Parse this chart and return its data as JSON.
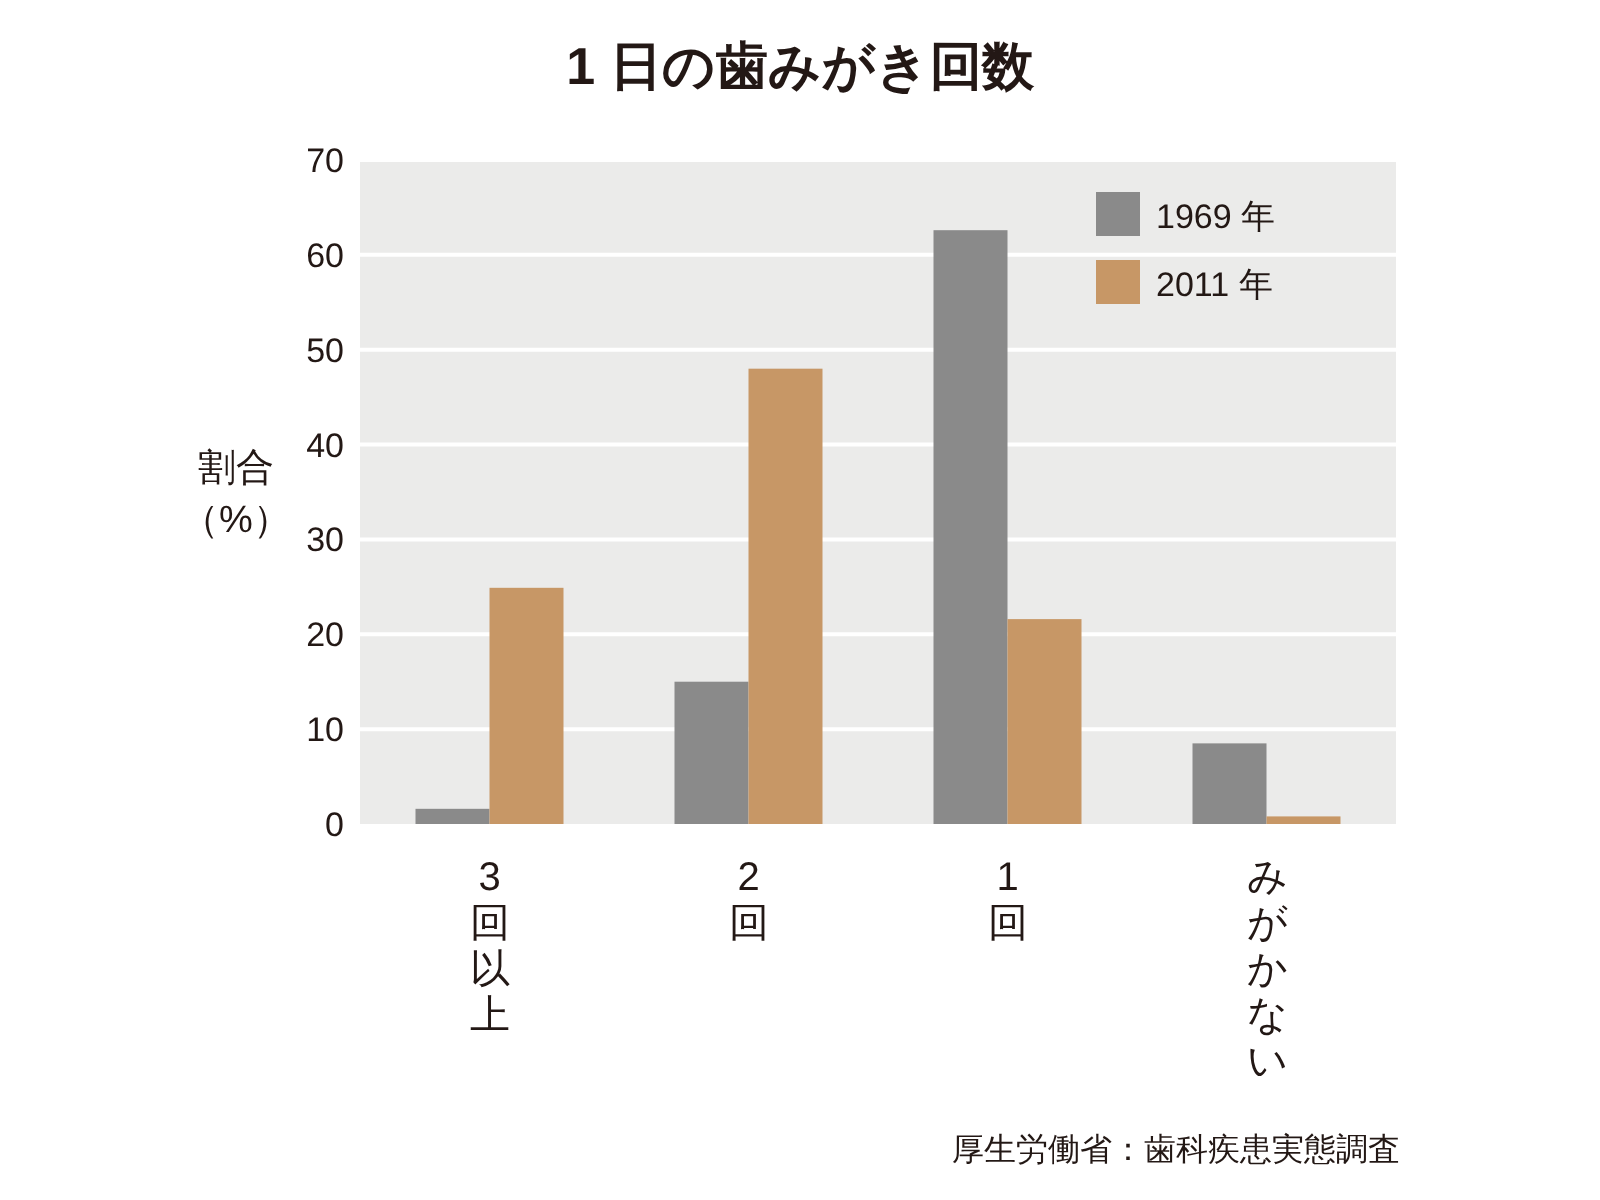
{
  "chart_data": {
    "type": "bar",
    "title": "1 日の歯みがき回数",
    "ylabel": "割合（%）",
    "categories": [
      "3回以上",
      "2回",
      "1回",
      "みがかない"
    ],
    "series": [
      {
        "name": "1969 年",
        "color": "#8a8a8a",
        "values": [
          1.6,
          15,
          62.6,
          8.5
        ]
      },
      {
        "name": "2011 年",
        "color": "#c79766",
        "values": [
          24.9,
          48,
          21.6,
          0.8
        ]
      }
    ],
    "ylim": [
      0,
      70
    ],
    "yticks": [
      0,
      10,
      20,
      30,
      40,
      50,
      60,
      70
    ],
    "grid": "y",
    "legend": "top right",
    "annotations": [
      "厚生労働省：歯科疾患実態調査"
    ]
  }
}
